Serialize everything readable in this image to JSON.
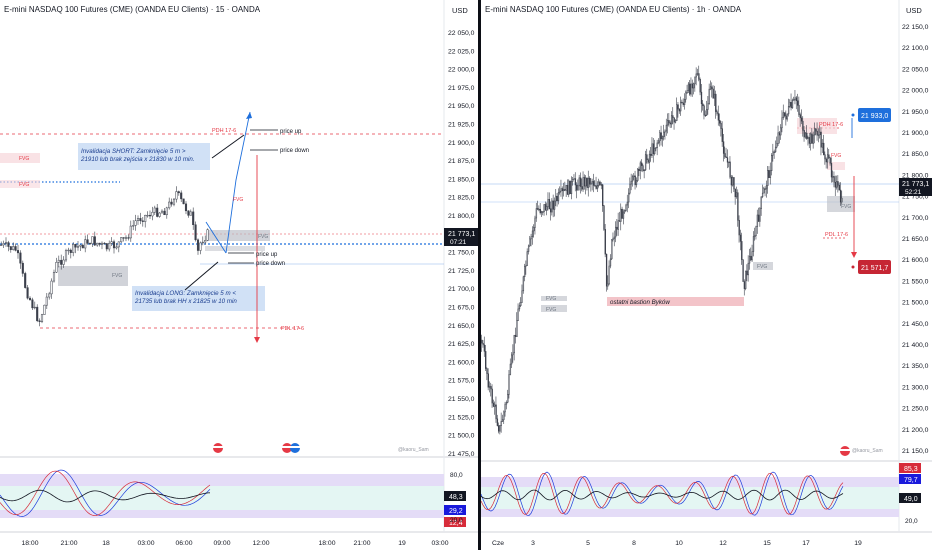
{
  "left_chart": {
    "title": "E-mini NASDAQ 100 Futures (CME) (OANDA EU Clients) · 15 · OANDA",
    "currency": "USD",
    "y_ticks": [
      "22 050,0",
      "22 025,0",
      "22 000,0",
      "21 975,0",
      "21 950,0",
      "21 925,0",
      "21 900,0",
      "21 875,0",
      "21 850,0",
      "21 825,0",
      "21 800,0",
      "21 775,0",
      "21 750,0",
      "21 725,0",
      "21 700,0",
      "21 675,0",
      "21 650,0",
      "21 625,0",
      "21 600,0",
      "21 575,0",
      "21 550,0",
      "21 525,0",
      "21 500,0",
      "21 475,0"
    ],
    "price_badge": {
      "price": "21 773,1",
      "timer": "07:21"
    },
    "x_ticks": [
      "18:00",
      "21:00",
      "18",
      "03:00",
      "06:00",
      "09:00",
      "12:00",
      "18:00",
      "21:00",
      "19",
      "03:00"
    ],
    "labels": {
      "pdh": "PDH 17-6",
      "pdl": "PDL 17-6",
      "fvg": "FVG",
      "price_up": "price up",
      "price_down": "price down",
      "inv_short_1": "Invalidacja SHORT:  Zamknięcie 5 m >",
      "inv_short_2": "21910 lub brak zejścia x 21830 w 10 min.",
      "inv_long_1": "Invalidacja LONG:  Zamknięcie 5 m <",
      "inv_long_2": "21735 lub brak HH x 21825 w 10 min",
      "watermark": "@kaoru_Sam"
    },
    "oscillator": {
      "ticks": [
        "80,0",
        "20,0"
      ],
      "badges": {
        "mid": "48,3",
        "blue": "29,2",
        "red": "12,4"
      }
    }
  },
  "right_chart": {
    "title": "E-mini NASDAQ 100 Futures (CME) (OANDA EU Clients) · 1h · OANDA",
    "currency": "USD",
    "y_ticks": [
      "22 150,0",
      "22 100,0",
      "22 050,0",
      "22 000,0",
      "21 950,0",
      "21 900,0",
      "21 850,0",
      "21 800,0",
      "21 750,0",
      "21 700,0",
      "21 650,0",
      "21 600,0",
      "21 550,0",
      "21 500,0",
      "21 450,0",
      "21 400,0",
      "21 350,0",
      "21 300,0",
      "21 250,0",
      "21 200,0",
      "21 150,0"
    ],
    "price_badge": {
      "price": "21 773,1",
      "timer": "52:21"
    },
    "target_up": "21 933,0",
    "target_down": "21 571,7",
    "x_ticks": [
      "Cze",
      "3",
      "5",
      "8",
      "10",
      "12",
      "15",
      "17",
      "19"
    ],
    "labels": {
      "pdh": "PDH 17-6",
      "pdl": "PDL 17-6",
      "fvg": "FVG",
      "bastion": "ostatni bastion Byków",
      "watermark": "@kaoru_Sam"
    },
    "oscillator": {
      "ticks": [
        "80,0",
        "20,0"
      ],
      "badges": {
        "red": "85,3",
        "blue": "79,7",
        "mid": "49,0"
      }
    }
  },
  "colors": {
    "up": "#6e7681",
    "bull": "#ffffff",
    "red": "#e53945",
    "blue": "#1e6fdc",
    "dark": "#131722",
    "zone": "#d1d4dc",
    "fvg": "#f7d6da",
    "purple": "#9c7be0",
    "band": "#e4dcf7",
    "teal": "#d9f2ee"
  }
}
